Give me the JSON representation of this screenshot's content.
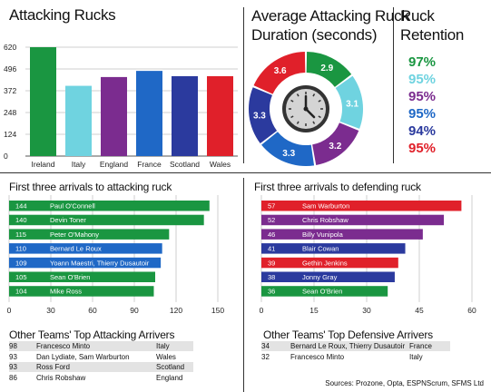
{
  "colors": {
    "green": "#1a9641",
    "teal": "#6fd3e0",
    "purple": "#7b2c8f",
    "blue": "#1f68c6",
    "navy": "#2b3a9e",
    "red": "#e0202a",
    "row_shade": "#e3e3e3"
  },
  "sections": {
    "attacking_rucks_title": "Attacking Rucks",
    "duration_title_line1": "Average Attacking Ruck",
    "duration_title_line2": "Duration (seconds)",
    "retention_title_line1": "Ruck",
    "retention_title_line2": "Retention",
    "arrivals_attack_title": "First three arrivals to attacking ruck",
    "arrivals_defend_title": "First three arrivals to defending ruck",
    "other_attack_title": "Other Teams' Top Attacking Arrivers",
    "other_defend_title": "Other Teams' Top Defensive Arrivers",
    "sources": "Sources: Prozone, Opta, ESPNScrum, SFMS Ltd"
  },
  "chart_data": [
    {
      "type": "bar",
      "title": "Attacking Rucks",
      "categories": [
        "Ireland",
        "Italy",
        "England",
        "France",
        "Scotland",
        "Wales"
      ],
      "values": [
        620,
        400,
        450,
        485,
        455,
        455
      ],
      "colors": [
        "#1a9641",
        "#6fd3e0",
        "#7b2c8f",
        "#1f68c6",
        "#2b3a9e",
        "#e0202a"
      ],
      "yticks": [
        0,
        124,
        248,
        372,
        496,
        620
      ],
      "ylim": [
        0,
        620
      ],
      "grid": true
    },
    {
      "type": "pie",
      "title": "Average Attacking Ruck Duration (seconds)",
      "labels": [
        "2.9",
        "3.1",
        "3.2",
        "3.3",
        "3.3",
        "3.6"
      ],
      "values": [
        2.9,
        3.1,
        3.2,
        3.3,
        3.3,
        3.6
      ],
      "colors": [
        "#1a9641",
        "#6fd3e0",
        "#7b2c8f",
        "#1f68c6",
        "#2b3a9e",
        "#e0202a"
      ],
      "center_icon": "clock-icon"
    },
    {
      "type": "table",
      "title": "Ruck Retention",
      "values": [
        "97%",
        "95%",
        "95%",
        "95%",
        "94%",
        "95%"
      ],
      "colors": [
        "#1a9641",
        "#6fd3e0",
        "#7b2c8f",
        "#1f68c6",
        "#2b3a9e",
        "#e0202a"
      ]
    },
    {
      "type": "bar",
      "title": "First three arrivals to attacking ruck",
      "orientation": "horizontal",
      "bars": [
        {
          "value": 144,
          "label": "Paul O'Connell",
          "color": "#1a9641"
        },
        {
          "value": 140,
          "label": "Devin Toner",
          "color": "#1a9641"
        },
        {
          "value": 115,
          "label": "Peter O'Mahony",
          "color": "#1a9641"
        },
        {
          "value": 110,
          "label": "Bernard Le Roux",
          "color": "#1f68c6"
        },
        {
          "value": 109,
          "label": "Yoann Maestri, Thierry Dusautoir",
          "color": "#1f68c6"
        },
        {
          "value": 105,
          "label": "Sean O'Brien",
          "color": "#1a9641"
        },
        {
          "value": 104,
          "label": "Mike Ross",
          "color": "#1a9641"
        }
      ],
      "xticks": [
        0,
        30,
        60,
        90,
        120,
        150
      ],
      "xlim": [
        0,
        150
      ]
    },
    {
      "type": "bar",
      "title": "First three arrivals to defending ruck",
      "orientation": "horizontal",
      "bars": [
        {
          "value": 57,
          "label": "Sam Warburton",
          "color": "#e0202a"
        },
        {
          "value": 52,
          "label": "Chris Robshaw",
          "color": "#7b2c8f"
        },
        {
          "value": 46,
          "label": "Billy Vunipola",
          "color": "#7b2c8f"
        },
        {
          "value": 41,
          "label": "Blair Cowan",
          "color": "#2b3a9e"
        },
        {
          "value": 39,
          "label": "Gethin Jenkins",
          "color": "#e0202a"
        },
        {
          "value": 38,
          "label": "Jonny Gray",
          "color": "#2b3a9e"
        },
        {
          "value": 36,
          "label": "Sean O'Brien",
          "color": "#1a9641"
        }
      ],
      "xticks": [
        0,
        15,
        30,
        45,
        60
      ],
      "xlim": [
        0,
        60
      ]
    }
  ],
  "other_attack": [
    {
      "num": "98",
      "name": "Francesco Minto",
      "team": "Italy"
    },
    {
      "num": "93",
      "name": "Dan Lydiate, Sam Warburton",
      "team": "Wales"
    },
    {
      "num": "93",
      "name": "Ross Ford",
      "team": "Scotland"
    },
    {
      "num": "86",
      "name": "Chris Robshaw",
      "team": "England"
    }
  ],
  "other_defend": [
    {
      "num": "34",
      "name": "Bernard Le Roux, Thierry Dusautoir",
      "team": "France"
    },
    {
      "num": "32",
      "name": "Francesco Minto",
      "team": "Italy"
    }
  ]
}
